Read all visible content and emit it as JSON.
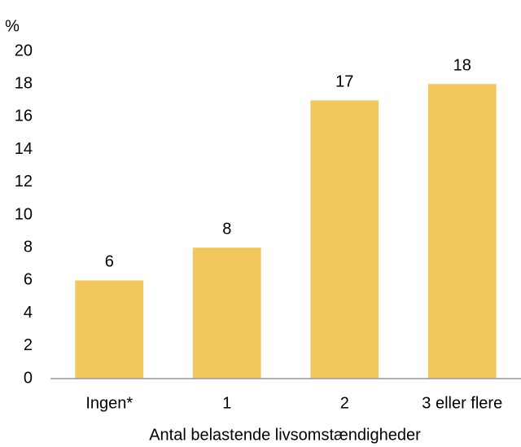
{
  "chart_data": {
    "type": "bar",
    "y_label": "%",
    "x_label": "Antal belastende livsomstændigheder",
    "categories": [
      "Ingen*",
      "1",
      "2",
      "3 eller flere"
    ],
    "values": [
      6,
      8,
      17,
      18
    ],
    "color": "#f1c75e",
    "ylim": [
      0,
      20
    ],
    "yticks": [
      0,
      2,
      4,
      6,
      8,
      10,
      12,
      14,
      16,
      18,
      20
    ],
    "grid": false
  }
}
